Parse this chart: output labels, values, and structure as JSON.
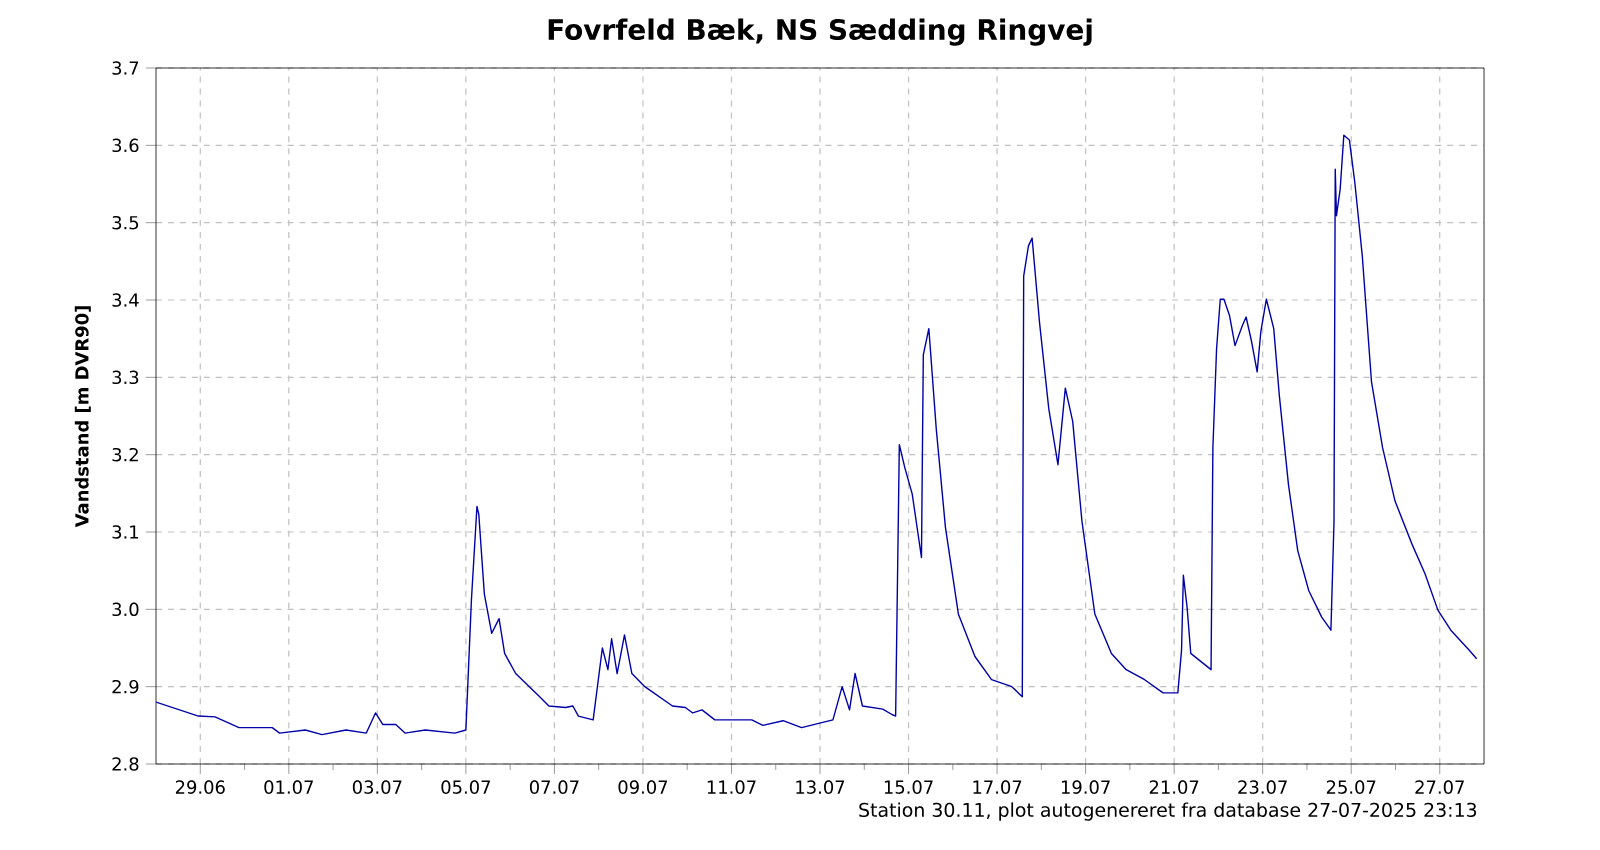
{
  "chart_data": {
    "type": "line",
    "title": "Fovrfeld Bæk, NS Sædding Ringvej",
    "ylabel": "Vandstand [m DVR90]",
    "annotations": [
      "Station 30.11, plot autogenereret fra database 27-07-2025 23:13"
    ],
    "xlim": [
      "2025-06-28T00:00",
      "2025-07-28T00:00"
    ],
    "xticks": [
      {
        "value": "2025-06-29",
        "label": "29.06"
      },
      {
        "value": "2025-06-30",
        "label": null
      },
      {
        "value": "2025-07-01",
        "label": "01.07"
      },
      {
        "value": "2025-07-02",
        "label": null
      },
      {
        "value": "2025-07-03",
        "label": "03.07"
      },
      {
        "value": "2025-07-04",
        "label": null
      },
      {
        "value": "2025-07-05",
        "label": "05.07"
      },
      {
        "value": "2025-07-06",
        "label": null
      },
      {
        "value": "2025-07-07",
        "label": "07.07"
      },
      {
        "value": "2025-07-08",
        "label": null
      },
      {
        "value": "2025-07-09",
        "label": "09.07"
      },
      {
        "value": "2025-07-10",
        "label": null
      },
      {
        "value": "2025-07-11",
        "label": "11.07"
      },
      {
        "value": "2025-07-12",
        "label": null
      },
      {
        "value": "2025-07-13",
        "label": "13.07"
      },
      {
        "value": "2025-07-14",
        "label": null
      },
      {
        "value": "2025-07-15",
        "label": "15.07"
      },
      {
        "value": "2025-07-16",
        "label": null
      },
      {
        "value": "2025-07-17",
        "label": "17.07"
      },
      {
        "value": "2025-07-18",
        "label": null
      },
      {
        "value": "2025-07-19",
        "label": "19.07"
      },
      {
        "value": "2025-07-20",
        "label": null
      },
      {
        "value": "2025-07-21",
        "label": "21.07"
      },
      {
        "value": "2025-07-22",
        "label": null
      },
      {
        "value": "2025-07-23",
        "label": "23.07"
      },
      {
        "value": "2025-07-24",
        "label": null
      },
      {
        "value": "2025-07-25",
        "label": "25.07"
      },
      {
        "value": "2025-07-26",
        "label": null
      },
      {
        "value": "2025-07-27",
        "label": "27.07"
      }
    ],
    "ylim": [
      2.8,
      3.7
    ],
    "yticks": [
      2.8,
      2.9,
      {
        "value": 3.0,
        "label": "3.0"
      },
      3.1,
      3.2,
      3.3,
      3.4,
      3.5,
      3.6,
      3.7
    ],
    "grid": true,
    "marker": "none",
    "line_style": "solid",
    "series": [
      {
        "color": "#0000a8",
        "x": [
          "2025-06-28T00:00",
          "2025-06-28T23:00",
          "2025-06-29T08:00",
          "2025-06-29T21:00",
          "2025-06-30T15:00",
          "2025-06-30T19:00",
          "2025-07-01T09:00",
          "2025-07-01T18:00",
          "2025-07-02T07:00",
          "2025-07-02T18:00",
          "2025-07-02T23:00",
          "2025-07-03T03:00",
          "2025-07-03T10:00",
          "2025-07-03T15:00",
          "2025-07-04T02:00",
          "2025-07-04T18:00",
          "2025-07-05T00:00",
          "2025-07-05T03:00",
          "2025-07-05T06:00",
          "2025-07-05T07:00",
          "2025-07-05T10:00",
          "2025-07-05T14:00",
          "2025-07-05T18:00",
          "2025-07-05T21:00",
          "2025-07-06T03:00",
          "2025-07-06T16:00",
          "2025-07-06T21:00",
          "2025-07-07T06:00",
          "2025-07-07T10:00",
          "2025-07-07T13:00",
          "2025-07-07T21:00",
          "2025-07-08T02:00",
          "2025-07-08T05:00",
          "2025-07-08T07:00",
          "2025-07-08T10:00",
          "2025-07-08T14:00",
          "2025-07-08T18:00",
          "2025-07-09T01:00",
          "2025-07-09T16:00",
          "2025-07-09T23:00",
          "2025-07-10T03:00",
          "2025-07-10T08:00",
          "2025-07-10T15:00",
          "2025-07-11T11:00",
          "2025-07-11T17:00",
          "2025-07-12T04:00",
          "2025-07-12T14:00",
          "2025-07-13T07:00",
          "2025-07-13T12:00",
          "2025-07-13T16:00",
          "2025-07-13T19:00",
          "2025-07-13T23:00",
          "2025-07-14T10:00",
          "2025-07-14T15:00",
          "2025-07-14T17:00",
          "2025-07-14T19:00",
          "2025-07-14T22:00",
          "2025-07-15T02:00",
          "2025-07-15T07:00",
          "2025-07-15T08:00",
          "2025-07-15T11:00",
          "2025-07-15T15:00",
          "2025-07-15T20:00",
          "2025-07-16T03:00",
          "2025-07-16T12:00",
          "2025-07-16T21:00",
          "2025-07-17T08:00",
          "2025-07-17T13:40",
          "2025-07-17T14:25",
          "2025-07-17T17:00",
          "2025-07-17T19:00",
          "2025-07-17T23:00",
          "2025-07-18T04:00",
          "2025-07-18T09:00",
          "2025-07-18T13:00",
          "2025-07-18T17:00",
          "2025-07-18T22:00",
          "2025-07-19T05:00",
          "2025-07-19T14:00",
          "2025-07-19T22:00",
          "2025-07-20T08:00",
          "2025-07-20T18:00",
          "2025-07-21T02:00",
          "2025-07-21T04:00",
          "2025-07-21T05:00",
          "2025-07-21T07:00",
          "2025-07-21T09:00",
          "2025-07-21T20:00",
          "2025-07-21T21:00",
          "2025-07-21T23:00",
          "2025-07-22T01:00",
          "2025-07-22T03:00",
          "2025-07-22T06:00",
          "2025-07-22T09:00",
          "2025-07-22T13:00",
          "2025-07-22T15:00",
          "2025-07-22T18:00",
          "2025-07-22T21:00",
          "2025-07-22T23:00",
          "2025-07-23T02:00",
          "2025-07-23T06:00",
          "2025-07-23T09:00",
          "2025-07-23T14:00",
          "2025-07-23T19:00",
          "2025-07-24T01:00",
          "2025-07-24T08:00",
          "2025-07-24T13:00",
          "2025-07-24T14:40",
          "2025-07-24T15:20",
          "2025-07-24T16:00",
          "2025-07-24T18:00",
          "2025-07-24T20:00",
          "2025-07-24T23:00",
          "2025-07-25T02:00",
          "2025-07-25T06:00",
          "2025-07-25T11:00",
          "2025-07-25T17:00",
          "2025-07-25T23:45",
          "2025-07-26T09:00",
          "2025-07-26T16:00",
          "2025-07-26T23:00",
          "2025-07-27T06:00",
          "2025-07-27T16:00",
          "2025-07-27T20:00"
        ],
        "values": [
          2.88,
          2.862,
          2.861,
          2.847,
          2.847,
          2.84,
          2.844,
          2.838,
          2.844,
          2.84,
          2.866,
          2.851,
          2.851,
          2.84,
          2.844,
          2.84,
          2.844,
          3.012,
          3.133,
          3.123,
          3.02,
          2.969,
          2.988,
          2.943,
          2.917,
          2.887,
          2.875,
          2.873,
          2.875,
          2.862,
          2.857,
          2.95,
          2.922,
          2.962,
          2.917,
          2.967,
          2.917,
          2.9,
          2.875,
          2.873,
          2.866,
          2.87,
          2.857,
          2.857,
          2.85,
          2.856,
          2.847,
          2.857,
          2.9,
          2.87,
          2.917,
          2.875,
          2.871,
          2.864,
          2.862,
          3.213,
          3.183,
          3.149,
          3.067,
          3.329,
          3.363,
          3.234,
          3.106,
          2.994,
          2.939,
          2.909,
          2.9,
          2.887,
          3.431,
          3.47,
          3.48,
          3.371,
          3.26,
          3.187,
          3.286,
          3.243,
          3.114,
          2.994,
          2.943,
          2.922,
          2.909,
          2.892,
          2.892,
          2.947,
          3.044,
          3.003,
          2.943,
          2.922,
          3.209,
          3.337,
          3.401,
          3.401,
          3.38,
          3.341,
          3.367,
          3.378,
          3.346,
          3.307,
          3.359,
          3.401,
          3.363,
          3.277,
          3.161,
          3.076,
          3.024,
          2.99,
          2.973,
          3.114,
          3.569,
          3.509,
          3.543,
          3.613,
          3.607,
          3.551,
          3.457,
          3.294,
          3.209,
          3.14,
          3.084,
          3.046,
          2.999,
          2.973,
          2.947,
          2.936
        ]
      }
    ]
  }
}
